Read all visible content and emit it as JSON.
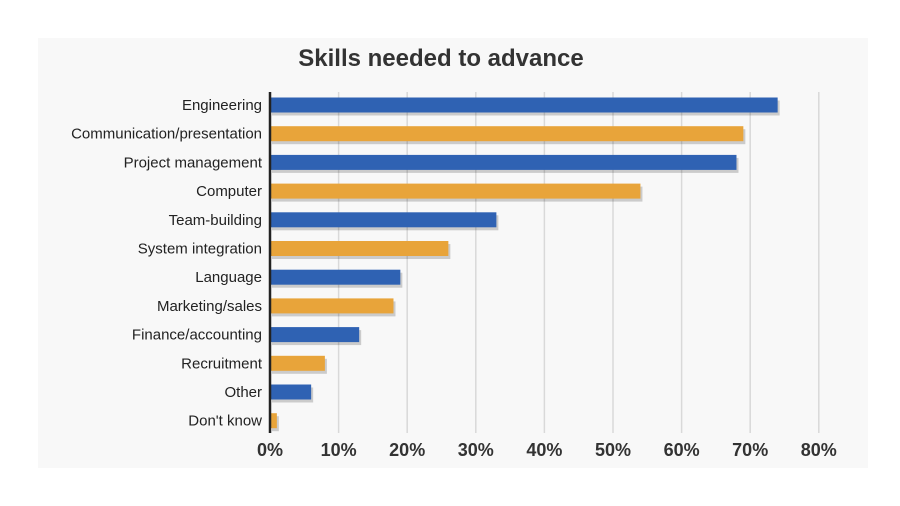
{
  "chart_data": {
    "type": "bar",
    "orientation": "horizontal",
    "title": "Skills needed to advance",
    "categories": [
      "Engineering",
      "Communication/presentation",
      "Project management",
      "Computer",
      "Team-building",
      "System integration",
      "Language",
      "Marketing/sales",
      "Finance/accounting",
      "Recruitment",
      "Other",
      "Don't know"
    ],
    "values": [
      74,
      69,
      68,
      54,
      33,
      26,
      19,
      18,
      13,
      8,
      6,
      1
    ],
    "value_unit": "%",
    "xlim": [
      0,
      80
    ],
    "xticks": [
      "0%",
      "10%",
      "20%",
      "30%",
      "40%",
      "50%",
      "60%",
      "70%",
      "80%"
    ],
    "grid": "vertical",
    "legend": "none",
    "colors": [
      "#2f62b3",
      "#e8a43a"
    ]
  }
}
